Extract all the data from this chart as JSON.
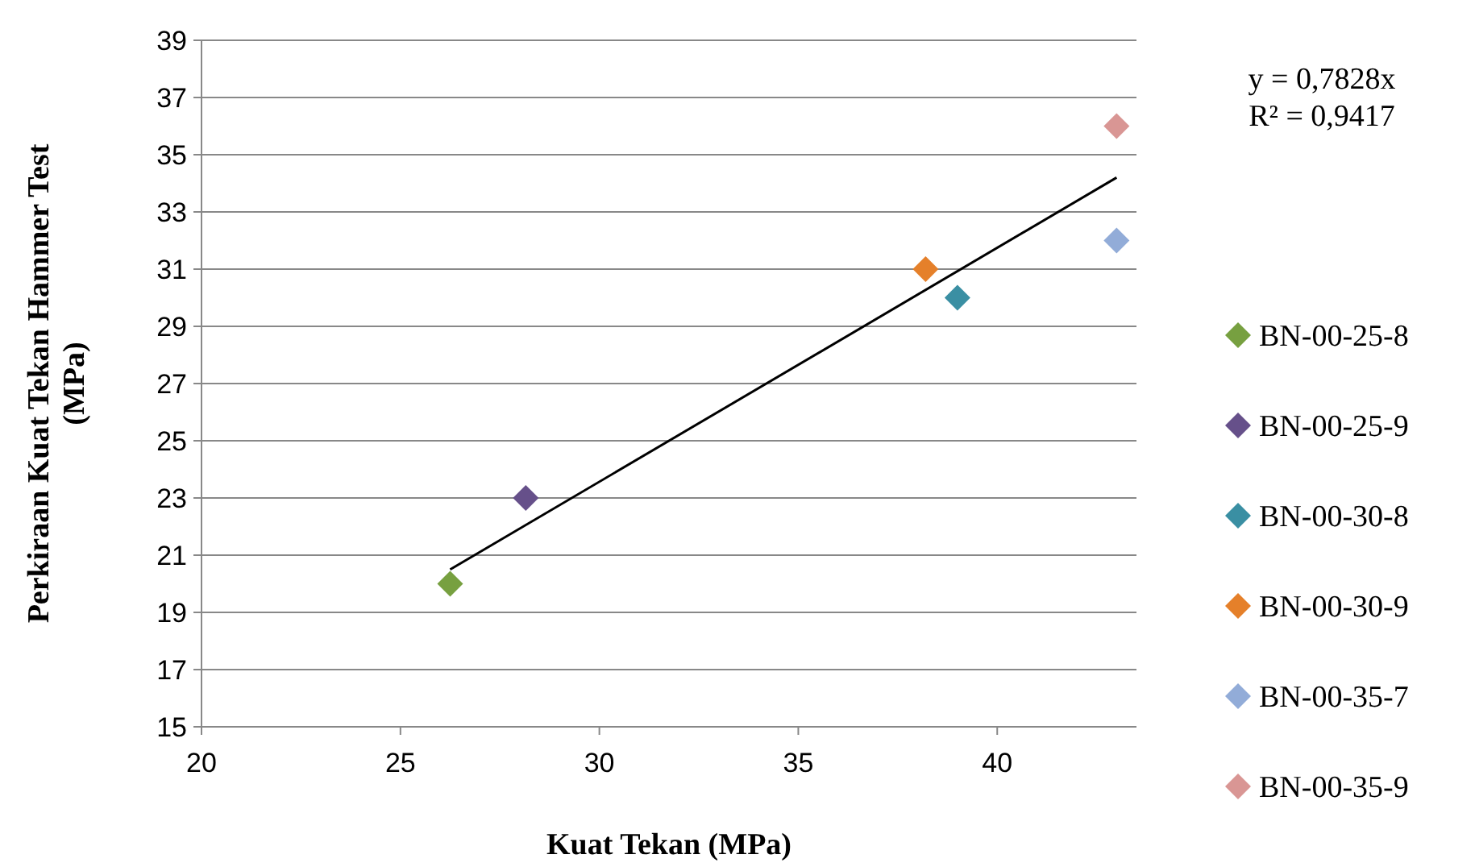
{
  "chart_data": {
    "type": "scatter",
    "xlabel": "Kuat Tekan (MPa)",
    "ylabel": "Perkiraan Kuat Tekan Hammer Test\n(MPa)",
    "xlim": [
      20,
      43.5
    ],
    "xticks": [
      20,
      25,
      30,
      35,
      40
    ],
    "ylim": [
      15,
      39
    ],
    "yticks": [
      15,
      17,
      19,
      21,
      23,
      25,
      27,
      29,
      31,
      33,
      35,
      37,
      39
    ],
    "grid": "y",
    "legend": "right",
    "annotations": [
      "y = 0,7828x",
      "R² = 0,9417"
    ],
    "series": [
      {
        "name": "BN-00-25-8",
        "color": "#77a040",
        "marker": "diamond",
        "x": [
          26.25
        ],
        "values": [
          20
        ]
      },
      {
        "name": "BN-00-25-9",
        "color": "#66508a",
        "marker": "diamond",
        "x": [
          28.15
        ],
        "values": [
          23
        ]
      },
      {
        "name": "BN-00-30-8",
        "color": "#3a8fa3",
        "marker": "diamond",
        "x": [
          39.0
        ],
        "values": [
          30
        ]
      },
      {
        "name": "BN-00-30-9",
        "color": "#e5802a",
        "marker": "diamond",
        "x": [
          38.2
        ],
        "values": [
          31
        ]
      },
      {
        "name": "BN-00-35-7",
        "color": "#92acd8",
        "marker": "diamond",
        "x": [
          43.0
        ],
        "values": [
          32
        ]
      },
      {
        "name": "BN-00-35-9",
        "color": "#d99694",
        "marker": "diamond",
        "x": [
          43.0
        ],
        "values": [
          36
        ]
      },
      {
        "type": "line",
        "color": "#000000",
        "marker": "none",
        "x": [
          26.25,
          43.0
        ],
        "values": [
          20.5,
          34.2
        ]
      }
    ]
  }
}
